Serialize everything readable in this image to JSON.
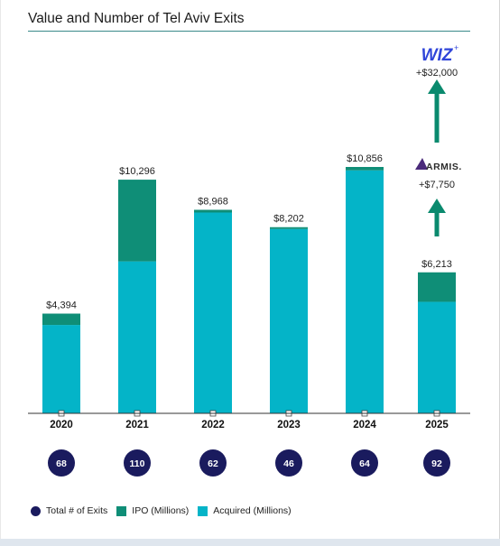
{
  "title": "Value and Number of Tel Aviv Exits",
  "colors": {
    "ipo": "#0f8e77",
    "acquired": "#04b4c8",
    "exits": "#1a1b5e",
    "arrow": "#0a8a6e",
    "wiz": "#2f45d9",
    "armis": "#4a2a7a"
  },
  "chart_data": {
    "type": "bar",
    "stacked": true,
    "categories": [
      "2020",
      "2021",
      "2022",
      "2023",
      "2024",
      "2025"
    ],
    "series": [
      {
        "name": "IPO (Millions)",
        "values": [
          500,
          3600,
          120,
          80,
          150,
          1300
        ]
      },
      {
        "name": "Acquired (Millions)",
        "values": [
          3894,
          6696,
          8848,
          8122,
          10706,
          4913
        ]
      }
    ],
    "totals": [
      "$4,394",
      "$10,296",
      "$8,968",
      "$8,202",
      "$10,856",
      "$6,213"
    ],
    "exits": {
      "name": "Total # of Exits",
      "values": [
        "68",
        "110",
        "62",
        "46",
        "64",
        "92"
      ]
    },
    "ylim": [
      0,
      11500
    ],
    "legend_position": "bottom-left",
    "annotations": [
      {
        "logo": "WIZ",
        "text": "+$32,000",
        "category": "2025"
      },
      {
        "logo": "ARMIS.",
        "text": "+$7,750",
        "category": "2025"
      }
    ]
  },
  "legend": {
    "exits_label": "Total # of Exits",
    "ipo_label": "IPO (Millions)",
    "acquired_label": "Acquired (Millions)"
  }
}
